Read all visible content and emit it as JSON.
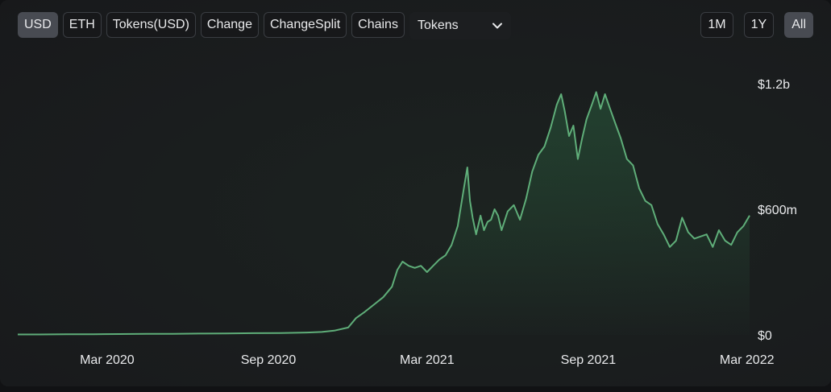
{
  "toolbar": {
    "buttons": [
      "USD",
      "ETH",
      "Tokens(USD)",
      "Change",
      "ChangeSplit",
      "Chains"
    ],
    "active": "USD",
    "dropdown": {
      "selected": "Tokens",
      "icon": "chevron-down-icon"
    }
  },
  "range": {
    "buttons": [
      "1M",
      "1Y",
      "All"
    ],
    "active": "All"
  },
  "colors": {
    "line": "#5fae79",
    "fill": "#2d6b45",
    "background": "#1a1d1e"
  },
  "chart_data": {
    "type": "area",
    "xlabel": "",
    "ylabel": "",
    "x_ticks": [
      "Mar 2020",
      "Sep 2020",
      "Mar 2021",
      "Sep 2021",
      "Mar 2022"
    ],
    "y_ticks": [
      "$0",
      "$600m",
      "$1.2b"
    ],
    "ylim": [
      0,
      1200
    ],
    "y_unit": "millions USD",
    "grid": false,
    "legend": "none",
    "series": [
      {
        "x": [
          "2019-11-20",
          "2019-12-15",
          "2020-01-15",
          "2020-02-15",
          "2020-03-15",
          "2020-04-15",
          "2020-05-15",
          "2020-06-15",
          "2020-07-15",
          "2020-08-15",
          "2020-09-15",
          "2020-10-15",
          "2020-11-01",
          "2020-11-15",
          "2020-12-01",
          "2020-12-10",
          "2020-12-20",
          "2021-01-01",
          "2021-01-10",
          "2021-01-20",
          "2021-01-26",
          "2021-02-01",
          "2021-02-08",
          "2021-02-15",
          "2021-02-22",
          "2021-03-01",
          "2021-03-08",
          "2021-03-15",
          "2021-03-22",
          "2021-03-29",
          "2021-04-05",
          "2021-04-12",
          "2021-04-16",
          "2021-04-19",
          "2021-04-22",
          "2021-04-26",
          "2021-05-01",
          "2021-05-05",
          "2021-05-09",
          "2021-05-13",
          "2021-05-17",
          "2021-05-21",
          "2021-05-25",
          "2021-06-01",
          "2021-06-08",
          "2021-06-15",
          "2021-06-22",
          "2021-06-29",
          "2021-07-06",
          "2021-07-13",
          "2021-07-20",
          "2021-07-27",
          "2021-08-01",
          "2021-08-05",
          "2021-08-10",
          "2021-08-15",
          "2021-08-20",
          "2021-08-25",
          "2021-08-30",
          "2021-09-05",
          "2021-09-10",
          "2021-09-15",
          "2021-09-20",
          "2021-09-25",
          "2021-10-01",
          "2021-10-08",
          "2021-10-15",
          "2021-10-22",
          "2021-10-29",
          "2021-11-05",
          "2021-11-12",
          "2021-11-19",
          "2021-11-26",
          "2021-12-03",
          "2021-12-10",
          "2021-12-17",
          "2021-12-24",
          "2021-12-31",
          "2022-01-07",
          "2022-01-14",
          "2022-01-21",
          "2022-01-28",
          "2022-02-04",
          "2022-02-11",
          "2022-02-18",
          "2022-02-25",
          "2022-03-04"
        ],
        "values": [
          2,
          2,
          3,
          3,
          4,
          5,
          5,
          6,
          7,
          8,
          9,
          11,
          14,
          20,
          35,
          80,
          110,
          150,
          180,
          230,
          310,
          350,
          330,
          320,
          330,
          300,
          330,
          360,
          380,
          430,
          520,
          700,
          800,
          640,
          560,
          480,
          570,
          500,
          540,
          550,
          600,
          570,
          500,
          590,
          620,
          550,
          650,
          780,
          860,
          900,
          990,
          1100,
          1150,
          1070,
          950,
          1000,
          840,
          940,
          1030,
          1100,
          1160,
          1080,
          1150,
          1090,
          1020,
          940,
          840,
          810,
          700,
          640,
          620,
          530,
          480,
          420,
          450,
          560,
          490,
          460,
          470,
          480,
          420,
          500,
          450,
          430,
          490,
          520,
          570
        ]
      }
    ]
  }
}
